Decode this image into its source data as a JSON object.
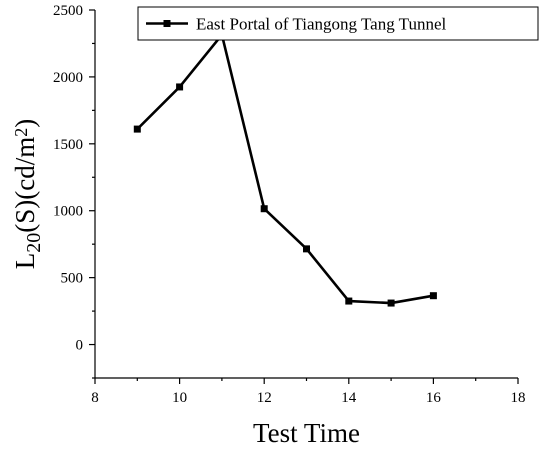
{
  "chart_data": {
    "type": "line",
    "title": "",
    "xlabel": "Test Time",
    "ylabel": {
      "prefix": "L",
      "subscript": "20",
      "mid": "(S)(cd/m",
      "superscript": "2",
      "suffix": ")"
    },
    "xlim": [
      8,
      18
    ],
    "ylim": [
      -250,
      2500
    ],
    "xticks": [
      8,
      10,
      12,
      14,
      16,
      18
    ],
    "yticks": [
      0,
      500,
      1000,
      1500,
      2000,
      2500
    ],
    "grid": false,
    "legend_position": "top-right",
    "series": [
      {
        "name": "East Portal of Tiangong Tang Tunnel",
        "marker": "square",
        "color": "#000000",
        "x": [
          9,
          10,
          11,
          12,
          13,
          14,
          15,
          16
        ],
        "y": [
          1610,
          1925,
          2315,
          1015,
          715,
          325,
          310,
          365
        ]
      }
    ]
  }
}
